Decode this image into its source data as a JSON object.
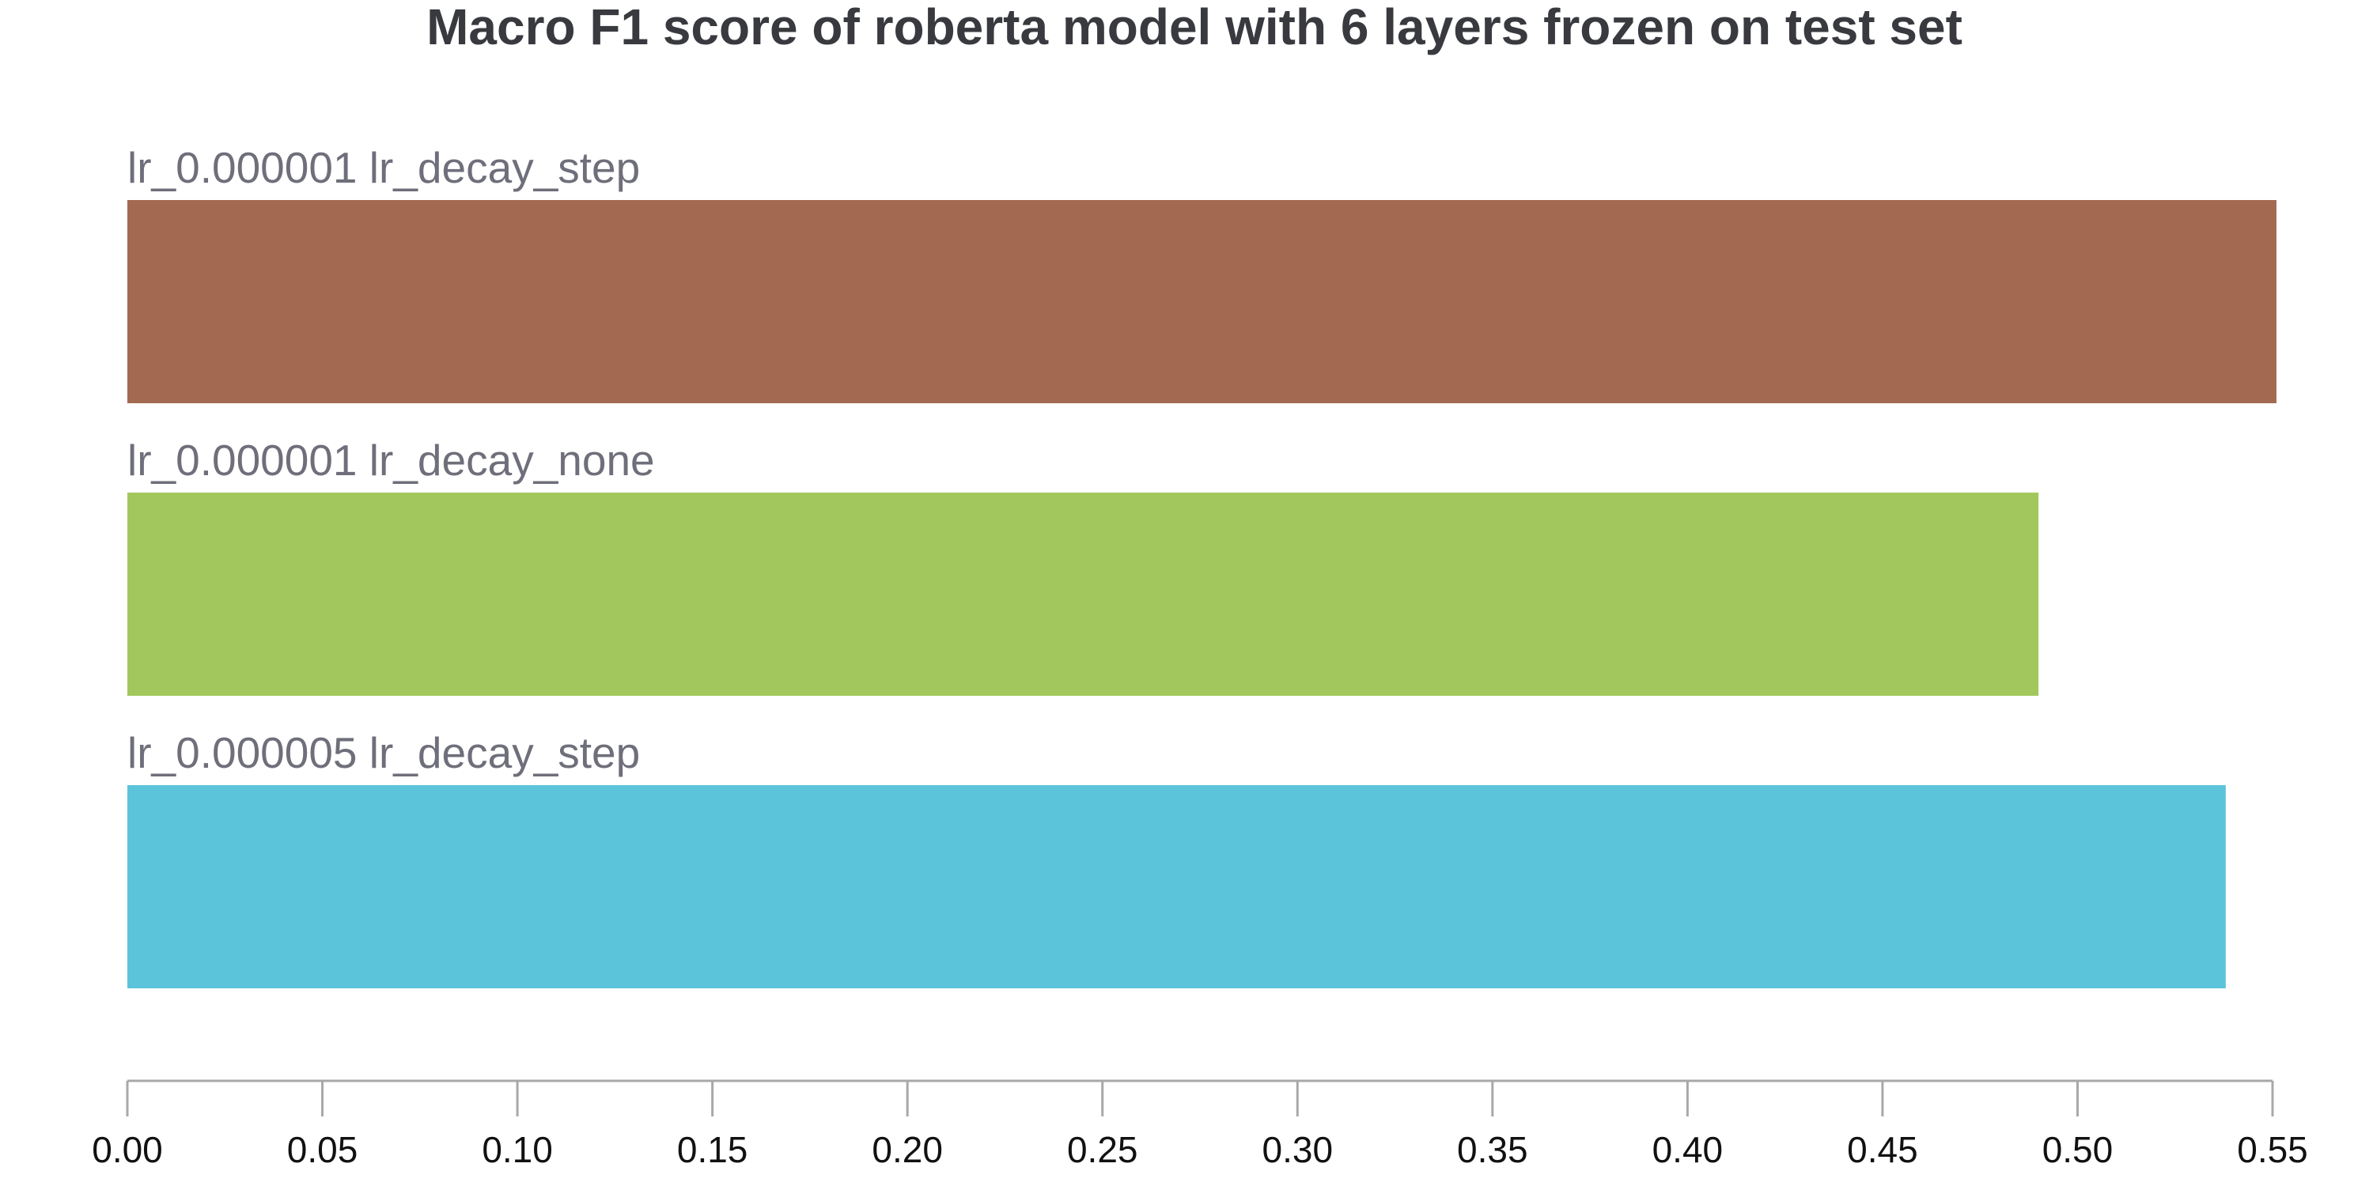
{
  "chart_data": {
    "type": "bar",
    "orientation": "horizontal",
    "title": "Macro F1 score of roberta model with 6 layers frozen on test set",
    "xlabel": "",
    "ylabel": "",
    "categories": [
      "lr_0.000001 lr_decay_step",
      "lr_0.000001 lr_decay_none",
      "lr_0.000005 lr_decay_step"
    ],
    "values": [
      0.551,
      0.49,
      0.538
    ],
    "colors": [
      "#a36a51",
      "#a2c85d",
      "#5cc4da"
    ],
    "xlim": [
      0,
      0.55
    ],
    "xticks": [
      "0.00",
      "0.05",
      "0.10",
      "0.15",
      "0.20",
      "0.25",
      "0.30",
      "0.35",
      "0.40",
      "0.45",
      "0.50",
      "0.55"
    ],
    "grid": false,
    "legend": "none"
  }
}
